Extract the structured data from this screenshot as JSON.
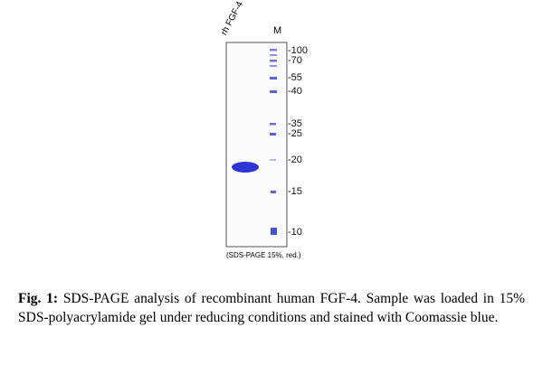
{
  "gel": {
    "lanes": [
      "rh FGF-4",
      "M"
    ],
    "markers": [
      "-100",
      "-70",
      "-55",
      "-40",
      "-35",
      "-25",
      "-20",
      "-15",
      "-10"
    ],
    "note": "(SDS-PAGE 15%, red.)"
  },
  "caption": {
    "label": "Fig. 1:",
    "text": "SDS-PAGE analysis of recombinant human FGF-4. Sample was loaded in 15% SDS-polyacrylamide gel under reducing conditions and stained with Coomassie blue."
  }
}
